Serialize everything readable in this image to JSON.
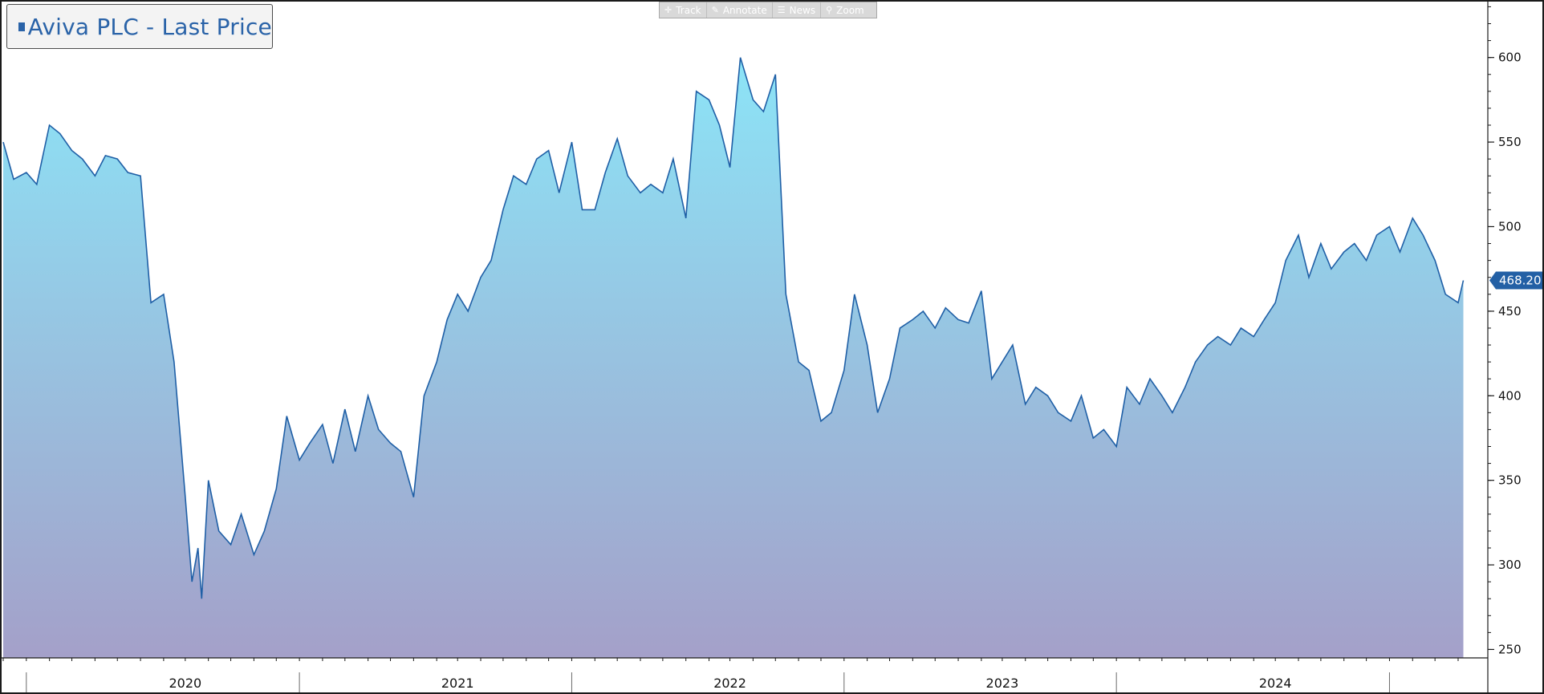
{
  "legend": {
    "label": "Aviva PLC - Last Price",
    "swatch_color": "#2a63a8"
  },
  "toolbar": {
    "track_label": "Track",
    "track_icon": "crosshair-icon",
    "annotate_label": "Annotate",
    "annotate_icon": "pencil-icon",
    "news_label": "News",
    "news_icon": "news-icon",
    "zoom_label": "Zoom",
    "zoom_icon": "magnifier-icon"
  },
  "colors": {
    "line": "#1f5fa6",
    "fill_top": "#8ce4f7",
    "fill_bottom": "#a4a0c9",
    "last_price_tag": "#2360a5"
  },
  "chart_data": {
    "type": "area",
    "title": "Aviva PLC - Last Price",
    "xlabel": "",
    "ylabel": "",
    "ylim": [
      245,
      634
    ],
    "y_ticks": [
      250,
      300,
      350,
      400,
      450,
      500,
      550,
      600
    ],
    "xlim": [
      "2019-07-01",
      "2024-11-15"
    ],
    "x_tick_labels": [
      "2020",
      "2021",
      "2022",
      "2023",
      "2024"
    ],
    "x_tick_positions": [
      "2020-03-01",
      "2021-03-01",
      "2022-03-01",
      "2023-03-01",
      "2024-03-01"
    ],
    "x_year_boundaries": [
      "2019-08-01",
      "2020-08-01",
      "2021-08-01",
      "2022-08-01",
      "2023-08-01",
      "2024-08-01"
    ],
    "grid": false,
    "legend_position": "top-left",
    "last_value": 468.2,
    "last_value_label": "468.20",
    "series": [
      {
        "name": "Aviva PLC - Last Price",
        "x": [
          "2019-07-01",
          "2019-07-15",
          "2019-08-01",
          "2019-08-15",
          "2019-09-01",
          "2019-09-15",
          "2019-10-01",
          "2019-10-15",
          "2019-11-01",
          "2019-11-15",
          "2019-12-01",
          "2019-12-15",
          "2020-01-01",
          "2020-01-15",
          "2020-02-01",
          "2020-02-15",
          "2020-03-01",
          "2020-03-10",
          "2020-03-18",
          "2020-03-23",
          "2020-04-01",
          "2020-04-15",
          "2020-05-01",
          "2020-05-15",
          "2020-06-01",
          "2020-06-15",
          "2020-07-01",
          "2020-07-15",
          "2020-08-01",
          "2020-08-15",
          "2020-09-01",
          "2020-09-15",
          "2020-10-01",
          "2020-10-15",
          "2020-11-01",
          "2020-11-15",
          "2020-12-01",
          "2020-12-15",
          "2021-01-01",
          "2021-01-15",
          "2021-02-01",
          "2021-02-15",
          "2021-03-01",
          "2021-03-15",
          "2021-04-01",
          "2021-04-15",
          "2021-05-01",
          "2021-05-15",
          "2021-06-01",
          "2021-06-15",
          "2021-07-01",
          "2021-07-15",
          "2021-08-01",
          "2021-08-15",
          "2021-09-01",
          "2021-09-15",
          "2021-10-01",
          "2021-10-15",
          "2021-11-01",
          "2021-11-15",
          "2021-12-01",
          "2021-12-15",
          "2022-01-01",
          "2022-01-15",
          "2022-02-01",
          "2022-02-15",
          "2022-03-01",
          "2022-03-15",
          "2022-04-01",
          "2022-04-15",
          "2022-05-01",
          "2022-05-15",
          "2022-06-01",
          "2022-06-15",
          "2022-07-01",
          "2022-07-15",
          "2022-08-01",
          "2022-08-15",
          "2022-09-01",
          "2022-09-15",
          "2022-10-01",
          "2022-10-15",
          "2022-11-01",
          "2022-11-15",
          "2022-12-01",
          "2022-12-15",
          "2023-01-01",
          "2023-01-15",
          "2023-02-01",
          "2023-02-15",
          "2023-03-01",
          "2023-03-15",
          "2023-04-01",
          "2023-04-15",
          "2023-05-01",
          "2023-05-15",
          "2023-06-01",
          "2023-06-15",
          "2023-07-01",
          "2023-07-15",
          "2023-08-01",
          "2023-08-15",
          "2023-09-01",
          "2023-09-15",
          "2023-10-01",
          "2023-10-15",
          "2023-11-01",
          "2023-11-15",
          "2023-12-01",
          "2023-12-15",
          "2024-01-01",
          "2024-01-15",
          "2024-02-01",
          "2024-02-15",
          "2024-03-01",
          "2024-03-15",
          "2024-04-01",
          "2024-04-15",
          "2024-05-01",
          "2024-05-15",
          "2024-06-01",
          "2024-06-15",
          "2024-07-01",
          "2024-07-15",
          "2024-08-01",
          "2024-08-15",
          "2024-09-01",
          "2024-09-15",
          "2024-10-01",
          "2024-10-15",
          "2024-11-01",
          "2024-11-08"
        ],
        "values": [
          550,
          528,
          532,
          525,
          560,
          555,
          545,
          540,
          530,
          542,
          540,
          532,
          530,
          455,
          460,
          420,
          340,
          290,
          310,
          280,
          350,
          320,
          312,
          330,
          306,
          320,
          345,
          388,
          362,
          372,
          383,
          360,
          392,
          367,
          400,
          380,
          372,
          367,
          340,
          400,
          420,
          445,
          460,
          450,
          470,
          480,
          510,
          530,
          525,
          540,
          545,
          520,
          550,
          510,
          510,
          532,
          552,
          530,
          520,
          525,
          520,
          540,
          505,
          580,
          575,
          560,
          535,
          600,
          575,
          568,
          590,
          460,
          420,
          415,
          385,
          390,
          415,
          460,
          430,
          390,
          410,
          440,
          445,
          450,
          440,
          452,
          445,
          443,
          462,
          410,
          420,
          430,
          395,
          405,
          400,
          390,
          385,
          400,
          375,
          380,
          370,
          405,
          395,
          410,
          400,
          390,
          405,
          420,
          430,
          435,
          430,
          440,
          435,
          445,
          455,
          480,
          495,
          470,
          490,
          475,
          485,
          490,
          480,
          495,
          500,
          485,
          505,
          495,
          480,
          460,
          455,
          468.2
        ]
      }
    ]
  }
}
